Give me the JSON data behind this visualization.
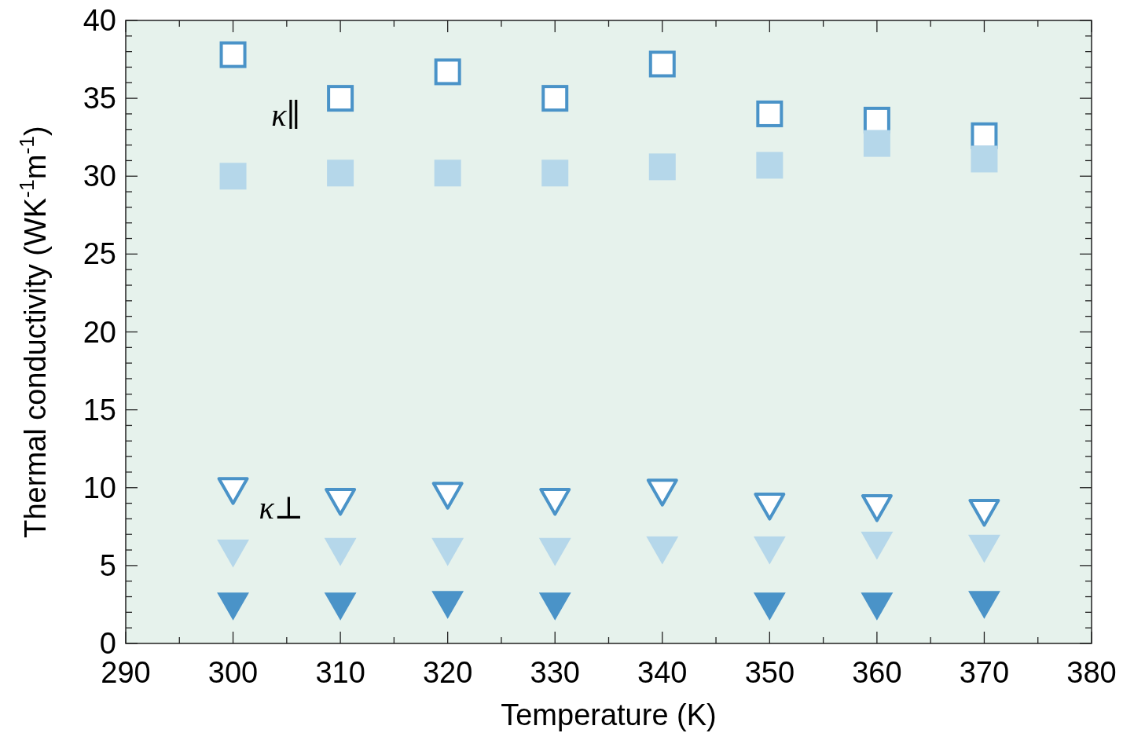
{
  "chart_data": {
    "type": "scatter",
    "xlabel": "Temperature (K)",
    "ylabel": "Thermal conductivity (WK$^{-1}$m$^{-1}$)",
    "x": [
      300,
      310,
      320,
      330,
      340,
      350,
      360,
      370
    ],
    "series": [
      {
        "color": "#4a93c8",
        "marker": "square",
        "values": [
          37.8,
          35.0,
          36.7,
          35.0,
          37.2,
          34.0,
          33.6,
          32.6
        ]
      },
      {
        "color": "#b5d7ea",
        "marker": "square",
        "values": [
          30.0,
          30.2,
          30.2,
          30.2,
          30.6,
          30.7,
          32.1,
          31.1
        ]
      },
      {
        "color": "#4a93c8",
        "marker": "triangle",
        "values": [
          9.9,
          9.2,
          9.6,
          9.2,
          9.8,
          8.9,
          8.8,
          8.5
        ]
      },
      {
        "color": "#b5d7ea",
        "marker": "triangle",
        "values": [
          5.9,
          6.0,
          6.0,
          6.0,
          6.1,
          6.1,
          6.4,
          6.2
        ]
      },
      {
        "color": "#4a93c8",
        "marker": "triangle",
        "values": [
          2.5,
          2.5,
          2.6,
          2.5,
          null,
          2.5,
          2.5,
          2.6
        ]
      }
    ],
    "annotations": [
      "κ∥",
      "κ⊥"
    ],
    "xlim": [
      290,
      380
    ],
    "ylim": [
      0,
      40
    ],
    "xticks": [
      290,
      {
        "value": 295,
        "label": null
      },
      300,
      {
        "value": 305,
        "label": null
      },
      310,
      {
        "value": 315,
        "label": null
      },
      320,
      {
        "value": 325,
        "label": null
      },
      330,
      {
        "value": 335,
        "label": null
      },
      340,
      {
        "value": 345,
        "label": null
      },
      350,
      {
        "value": 355,
        "label": null
      },
      360,
      {
        "value": 365,
        "label": null
      },
      370,
      {
        "value": 375,
        "label": null
      },
      380
    ],
    "yticks": [
      0,
      {
        "value": 1,
        "label": null
      },
      {
        "value": 2,
        "label": null
      },
      {
        "value": 3,
        "label": null
      },
      {
        "value": 4,
        "label": null
      },
      5,
      {
        "value": 6,
        "label": null
      },
      {
        "value": 7,
        "label": null
      },
      {
        "value": 8,
        "label": null
      },
      {
        "value": 9,
        "label": null
      },
      10,
      {
        "value": 11,
        "label": null
      },
      {
        "value": 12,
        "label": null
      },
      {
        "value": 13,
        "label": null
      },
      {
        "value": 14,
        "label": null
      },
      15,
      {
        "value": 16,
        "label": null
      },
      {
        "value": 17,
        "label": null
      },
      {
        "value": 18,
        "label": null
      },
      {
        "value": 19,
        "label": null
      },
      20,
      {
        "value": 21,
        "label": null
      },
      {
        "value": 22,
        "label": null
      },
      {
        "value": 23,
        "label": null
      },
      {
        "value": 24,
        "label": null
      },
      25,
      {
        "value": 26,
        "label": null
      },
      {
        "value": 27,
        "label": null
      },
      {
        "value": 28,
        "label": null
      },
      {
        "value": 29,
        "label": null
      },
      30,
      {
        "value": 31,
        "label": null
      },
      {
        "value": 32,
        "label": null
      },
      {
        "value": 33,
        "label": null
      },
      {
        "value": 34,
        "label": null
      },
      35,
      {
        "value": 36,
        "label": null
      },
      {
        "value": 37,
        "label": null
      },
      {
        "value": 38,
        "label": null
      },
      {
        "value": 39,
        "label": null
      },
      40
    ],
    "grid": false
  }
}
